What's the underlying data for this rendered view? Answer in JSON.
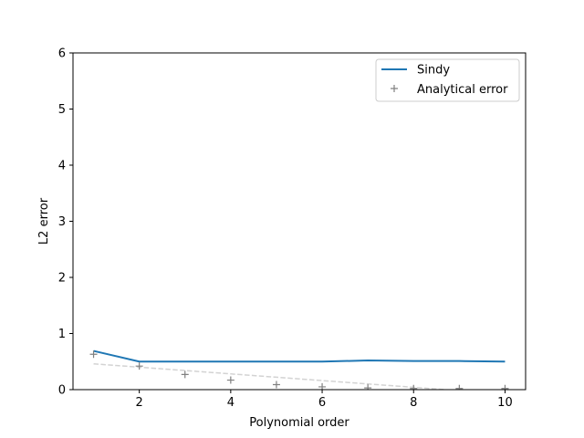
{
  "chart_data": {
    "type": "line",
    "xlabel": "Polynomial order",
    "ylabel": "L2 error",
    "xlim": [
      0.55,
      10.45
    ],
    "ylim": [
      0,
      6
    ],
    "xticks": [
      "2",
      "4",
      "6",
      "8",
      "10"
    ],
    "yticks": [
      "0",
      "1",
      "2",
      "3",
      "4",
      "5",
      "6"
    ],
    "grid": false,
    "legend_position": "top-right",
    "series": [
      {
        "name": "Sindy",
        "kind": "line",
        "color": "#1f77b4",
        "x": [
          1,
          2,
          3,
          4,
          5,
          6,
          7,
          8,
          9,
          10
        ],
        "y": [
          0.69,
          0.5,
          0.5,
          0.5,
          0.5,
          0.5,
          0.52,
          0.51,
          0.51,
          0.5
        ]
      },
      {
        "name": "Analytical error",
        "kind": "marker",
        "marker": "+",
        "color": "#808080",
        "x": [
          1,
          2,
          3,
          4,
          5,
          6,
          7,
          8,
          9,
          10
        ],
        "y": [
          0.63,
          0.42,
          0.27,
          0.17,
          0.09,
          0.05,
          0.03,
          0.02,
          0.02,
          0.02
        ]
      },
      {
        "kind": "trend",
        "style": "dashed",
        "color": "#d3d3d3",
        "x": [
          1,
          8.7
        ],
        "y": [
          0.46,
          0
        ]
      }
    ]
  }
}
